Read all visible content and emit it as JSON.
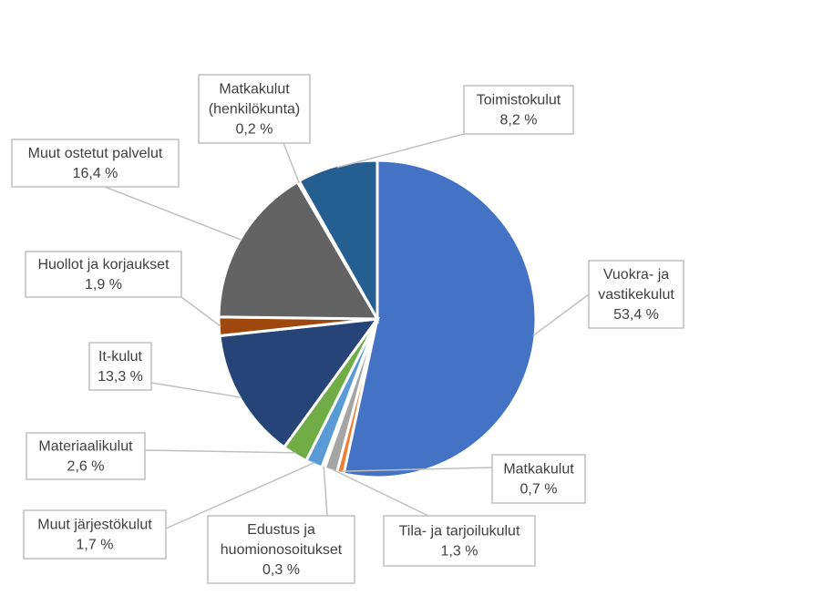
{
  "chart_data": {
    "type": "pie",
    "title": "",
    "slices": [
      {
        "label": "Vuokra- ja vastikekulut",
        "display": "53,4 %",
        "value": 53.4,
        "color": "#4472c4"
      },
      {
        "label": "Matkakulut",
        "display": "0,7 %",
        "value": 0.7,
        "color": "#ed7d31"
      },
      {
        "label": "Tila- ja tarjoilukulut",
        "display": "1,3 %",
        "value": 1.3,
        "color": "#a5a5a5"
      },
      {
        "label": "Edustus ja huomionosoitukset",
        "display": "0,3 %",
        "value": 0.3,
        "color": "#ffc000"
      },
      {
        "label": "Muut järjestökulut",
        "display": "1,7 %",
        "value": 1.7,
        "color": "#5b9bd5"
      },
      {
        "label": "Materiaalikulut",
        "display": "2,6 %",
        "value": 2.6,
        "color": "#70ad47"
      },
      {
        "label": "It-kulut",
        "display": "13,3 %",
        "value": 13.3,
        "color": "#264478"
      },
      {
        "label": "Huollot ja korjaukset",
        "display": "1,9 %",
        "value": 1.9,
        "color": "#9e480e"
      },
      {
        "label": "Muut ostetut palvelut",
        "display": "16,4 %",
        "value": 16.4,
        "color": "#636363"
      },
      {
        "label": "Matkakulut (henkilökunta)",
        "display": "0,2 %",
        "value": 0.2,
        "color": "#997300"
      },
      {
        "label": "Toimistokulut",
        "display": "8,2 %",
        "value": 8.2,
        "color": "#255e91"
      }
    ]
  }
}
